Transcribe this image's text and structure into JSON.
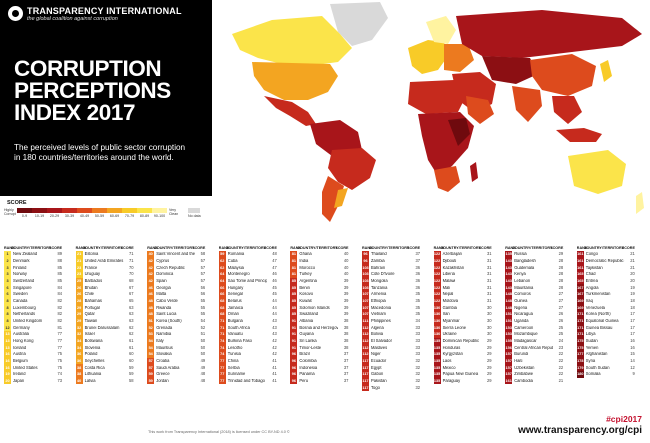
{
  "logo": {
    "name": "TRANSPARENCY INTERNATIONAL",
    "tagline": "the global coalition against corruption"
  },
  "title": {
    "line1": "CORRUPTION",
    "line2": "PERCEPTIONS",
    "line3": "INDEX 2017"
  },
  "subtitle": "The perceived levels of public sector corruption in 180 countries/territories around the world.",
  "legend": {
    "title": "SCORE",
    "low_label": "Highly Corrupt",
    "high_label": "Very Clean",
    "bands": [
      {
        "label": "0-9",
        "color": "#6f0a0e"
      },
      {
        "label": "10-19",
        "color": "#8c0f13"
      },
      {
        "label": "20-29",
        "color": "#a8151a"
      },
      {
        "label": "30-39",
        "color": "#c62a1d"
      },
      {
        "label": "40-49",
        "color": "#dd4b1d"
      },
      {
        "label": "50-59",
        "color": "#ec7a1f"
      },
      {
        "label": "60-69",
        "color": "#f3a521"
      },
      {
        "label": "70-79",
        "color": "#f8cb28"
      },
      {
        "label": "80-89",
        "color": "#fbe44a"
      },
      {
        "label": "90-100",
        "color": "#fff3a0"
      }
    ],
    "no_data_label": "No data"
  },
  "table_header": {
    "rank": "RANK",
    "country": "COUNTRY/TERRITORY",
    "score": "SCORE"
  },
  "columns": [
    [
      [
        "1",
        "New Zealand",
        "89"
      ],
      [
        "2",
        "Denmark",
        "88"
      ],
      [
        "3",
        "Finland",
        "85"
      ],
      [
        "3",
        "Norway",
        "85"
      ],
      [
        "3",
        "Switzerland",
        "85"
      ],
      [
        "6",
        "Singapore",
        "84"
      ],
      [
        "6",
        "Sweden",
        "84"
      ],
      [
        "8",
        "Canada",
        "82"
      ],
      [
        "8",
        "Luxembourg",
        "82"
      ],
      [
        "8",
        "Netherlands",
        "82"
      ],
      [
        "8",
        "United Kingdom",
        "82"
      ],
      [
        "12",
        "Germany",
        "81"
      ],
      [
        "13",
        "Australia",
        "77"
      ],
      [
        "13",
        "Hong Kong",
        "77"
      ],
      [
        "13",
        "Iceland",
        "77"
      ],
      [
        "16",
        "Austria",
        "75"
      ],
      [
        "16",
        "Belgium",
        "75"
      ],
      [
        "16",
        "United States",
        "75"
      ],
      [
        "19",
        "Ireland",
        "74"
      ],
      [
        "20",
        "Japan",
        "73"
      ]
    ],
    [
      [
        "21",
        "Estonia",
        "71"
      ],
      [
        "21",
        "United Arab Emirates",
        "71"
      ],
      [
        "23",
        "France",
        "70"
      ],
      [
        "23",
        "Uruguay",
        "70"
      ],
      [
        "25",
        "Barbados",
        "68"
      ],
      [
        "26",
        "Bhutan",
        "67"
      ],
      [
        "26",
        "Chile",
        "67"
      ],
      [
        "28",
        "Bahamas",
        "65"
      ],
      [
        "29",
        "Portugal",
        "63"
      ],
      [
        "29",
        "Qatar",
        "63"
      ],
      [
        "29",
        "Taiwan",
        "63"
      ],
      [
        "32",
        "Brunei Darussalam",
        "62"
      ],
      [
        "32",
        "Israel",
        "62"
      ],
      [
        "34",
        "Botswana",
        "61"
      ],
      [
        "34",
        "Slovenia",
        "61"
      ],
      [
        "36",
        "Poland",
        "60"
      ],
      [
        "36",
        "Seychelles",
        "60"
      ],
      [
        "38",
        "Costa Rica",
        "59"
      ],
      [
        "38",
        "Lithuania",
        "59"
      ],
      [
        "40",
        "Latvia",
        "58"
      ]
    ],
    [
      [
        "40",
        "Saint Vincent and the Grenadines",
        "58"
      ],
      [
        "42",
        "Cyprus",
        "57"
      ],
      [
        "42",
        "Czech Republic",
        "57"
      ],
      [
        "42",
        "Dominica",
        "57"
      ],
      [
        "42",
        "Spain",
        "57"
      ],
      [
        "46",
        "Georgia",
        "56"
      ],
      [
        "46",
        "Malta",
        "56"
      ],
      [
        "48",
        "Cabo Verde",
        "55"
      ],
      [
        "48",
        "Rwanda",
        "55"
      ],
      [
        "48",
        "Saint Lucia",
        "55"
      ],
      [
        "51",
        "Korea (South)",
        "54"
      ],
      [
        "52",
        "Grenada",
        "52"
      ],
      [
        "53",
        "Namibia",
        "51"
      ],
      [
        "54",
        "Italy",
        "50"
      ],
      [
        "54",
        "Mauritius",
        "50"
      ],
      [
        "54",
        "Slovakia",
        "50"
      ],
      [
        "57",
        "Croatia",
        "49"
      ],
      [
        "57",
        "Saudi Arabia",
        "49"
      ],
      [
        "59",
        "Greece",
        "48"
      ],
      [
        "59",
        "Jordan",
        "48"
      ]
    ],
    [
      [
        "59",
        "Romania",
        "48"
      ],
      [
        "62",
        "Cuba",
        "47"
      ],
      [
        "62",
        "Malaysia",
        "47"
      ],
      [
        "64",
        "Montenegro",
        "46"
      ],
      [
        "64",
        "Sao Tome and Principe",
        "46"
      ],
      [
        "66",
        "Hungary",
        "45"
      ],
      [
        "66",
        "Senegal",
        "45"
      ],
      [
        "68",
        "Belarus",
        "44"
      ],
      [
        "68",
        "Jamaica",
        "44"
      ],
      [
        "68",
        "Oman",
        "44"
      ],
      [
        "71",
        "Bulgaria",
        "43"
      ],
      [
        "71",
        "South Africa",
        "43"
      ],
      [
        "71",
        "Vanuatu",
        "43"
      ],
      [
        "74",
        "Burkina Faso",
        "42"
      ],
      [
        "74",
        "Lesotho",
        "42"
      ],
      [
        "74",
        "Tunisia",
        "42"
      ],
      [
        "77",
        "China",
        "41"
      ],
      [
        "77",
        "Serbia",
        "41"
      ],
      [
        "77",
        "Suriname",
        "41"
      ],
      [
        "77",
        "Trinidad and Tobago",
        "41"
      ]
    ],
    [
      [
        "81",
        "Ghana",
        "40"
      ],
      [
        "81",
        "India",
        "40"
      ],
      [
        "81",
        "Morocco",
        "40"
      ],
      [
        "81",
        "Turkey",
        "40"
      ],
      [
        "85",
        "Argentina",
        "39"
      ],
      [
        "85",
        "Benin",
        "39"
      ],
      [
        "85",
        "Kosovo",
        "39"
      ],
      [
        "85",
        "Kuwait",
        "39"
      ],
      [
        "85",
        "Solomon Islands",
        "39"
      ],
      [
        "85",
        "Swaziland",
        "39"
      ],
      [
        "91",
        "Albania",
        "38"
      ],
      [
        "91",
        "Bosnia and Herzegovina",
        "38"
      ],
      [
        "91",
        "Guyana",
        "38"
      ],
      [
        "91",
        "Sri Lanka",
        "38"
      ],
      [
        "91",
        "Timor-Leste",
        "38"
      ],
      [
        "96",
        "Brazil",
        "37"
      ],
      [
        "96",
        "Colombia",
        "37"
      ],
      [
        "96",
        "Indonesia",
        "37"
      ],
      [
        "96",
        "Panama",
        "37"
      ],
      [
        "96",
        "Peru",
        "37"
      ]
    ],
    [
      [
        "96",
        "Thailand",
        "37"
      ],
      [
        "96",
        "Zambia",
        "37"
      ],
      [
        "103",
        "Bahrain",
        "36"
      ],
      [
        "103",
        "Côte D'Ivoire",
        "36"
      ],
      [
        "103",
        "Mongolia",
        "36"
      ],
      [
        "103",
        "Tanzania",
        "36"
      ],
      [
        "107",
        "Armenia",
        "35"
      ],
      [
        "107",
        "Ethiopia",
        "35"
      ],
      [
        "107",
        "Macedonia",
        "35"
      ],
      [
        "107",
        "Vietnam",
        "35"
      ],
      [
        "111",
        "Philippines",
        "34"
      ],
      [
        "112",
        "Algeria",
        "33"
      ],
      [
        "112",
        "Bolivia",
        "33"
      ],
      [
        "112",
        "El Salvador",
        "33"
      ],
      [
        "112",
        "Maldives",
        "33"
      ],
      [
        "112",
        "Niger",
        "33"
      ],
      [
        "117",
        "Ecuador",
        "32"
      ],
      [
        "117",
        "Egypt",
        "32"
      ],
      [
        "117",
        "Gabon",
        "32"
      ],
      [
        "117",
        "Pakistan",
        "32"
      ],
      [
        "117",
        "Togo",
        "32"
      ]
    ],
    [
      [
        "122",
        "Azerbaijan",
        "31"
      ],
      [
        "122",
        "Djibouti",
        "31"
      ],
      [
        "122",
        "Kazakhstan",
        "31"
      ],
      [
        "122",
        "Liberia",
        "31"
      ],
      [
        "122",
        "Malawi",
        "31"
      ],
      [
        "122",
        "Mali",
        "31"
      ],
      [
        "122",
        "Nepal",
        "31"
      ],
      [
        "122",
        "Moldova",
        "31"
      ],
      [
        "130",
        "Gambia",
        "30"
      ],
      [
        "130",
        "Iran",
        "30"
      ],
      [
        "130",
        "Myanmar",
        "30"
      ],
      [
        "130",
        "Sierra Leone",
        "30"
      ],
      [
        "130",
        "Ukraine",
        "30"
      ],
      [
        "135",
        "Dominican Republic",
        "29"
      ],
      [
        "135",
        "Honduras",
        "29"
      ],
      [
        "135",
        "Kyrgyzstan",
        "29"
      ],
      [
        "135",
        "Laos",
        "29"
      ],
      [
        "135",
        "Mexico",
        "29"
      ],
      [
        "135",
        "Papua New Guinea",
        "29"
      ],
      [
        "135",
        "Paraguay",
        "29"
      ]
    ],
    [
      [
        "135",
        "Russia",
        "29"
      ],
      [
        "143",
        "Bangladesh",
        "28"
      ],
      [
        "143",
        "Guatemala",
        "28"
      ],
      [
        "143",
        "Kenya",
        "28"
      ],
      [
        "143",
        "Lebanon",
        "28"
      ],
      [
        "143",
        "Mauritania",
        "28"
      ],
      [
        "148",
        "Comoros",
        "27"
      ],
      [
        "148",
        "Guinea",
        "27"
      ],
      [
        "148",
        "Nigeria",
        "27"
      ],
      [
        "151",
        "Nicaragua",
        "26"
      ],
      [
        "151",
        "Uganda",
        "26"
      ],
      [
        "153",
        "Cameroon",
        "25"
      ],
      [
        "153",
        "Mozambique",
        "25"
      ],
      [
        "155",
        "Madagascar",
        "24"
      ],
      [
        "156",
        "Central African Republic",
        "23"
      ],
      [
        "157",
        "Burundi",
        "22"
      ],
      [
        "157",
        "Haiti",
        "22"
      ],
      [
        "157",
        "Uzbekistan",
        "22"
      ],
      [
        "157",
        "Zimbabwe",
        "22"
      ],
      [
        "161",
        "Cambodia",
        "21"
      ]
    ],
    [
      [
        "161",
        "Congo",
        "21"
      ],
      [
        "161",
        "Democratic Republic of Congo",
        "21"
      ],
      [
        "161",
        "Tajikistan",
        "21"
      ],
      [
        "165",
        "Chad",
        "20"
      ],
      [
        "165",
        "Eritrea",
        "20"
      ],
      [
        "167",
        "Angola",
        "19"
      ],
      [
        "167",
        "Turkmenistan",
        "19"
      ],
      [
        "169",
        "Iraq",
        "18"
      ],
      [
        "169",
        "Venezuela",
        "18"
      ],
      [
        "171",
        "Korea (North)",
        "17"
      ],
      [
        "171",
        "Equatorial Guinea",
        "17"
      ],
      [
        "171",
        "Guinea Bissau",
        "17"
      ],
      [
        "171",
        "Libya",
        "17"
      ],
      [
        "175",
        "Sudan",
        "16"
      ],
      [
        "175",
        "Yemen",
        "16"
      ],
      [
        "177",
        "Afghanistan",
        "15"
      ],
      [
        "178",
        "Syria",
        "14"
      ],
      [
        "179",
        "South Sudan",
        "12"
      ],
      [
        "180",
        "Somalia",
        "9"
      ]
    ]
  ],
  "footer": {
    "credit": "This work from Transparency International (2018) is licensed under CC BY-ND 4.0 ©",
    "hashtag": "#cpi2017",
    "website": "www.transparency.org/cpi"
  }
}
